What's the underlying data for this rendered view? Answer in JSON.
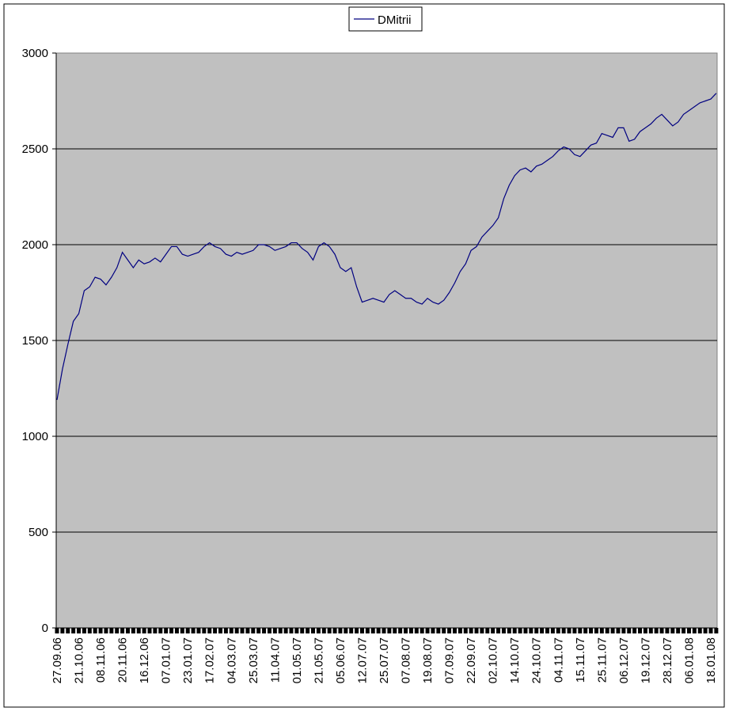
{
  "chart_data": {
    "type": "line",
    "categories": [
      "27.09.06",
      null,
      null,
      null,
      "21.10.06",
      null,
      null,
      null,
      "08.11.06",
      null,
      null,
      null,
      "20.11.06",
      null,
      null,
      null,
      "16.12.06",
      null,
      null,
      null,
      "07.01.07",
      null,
      null,
      null,
      "23.01.07",
      null,
      null,
      null,
      "17.02.07",
      null,
      null,
      null,
      "04.03.07",
      null,
      null,
      null,
      "25.03.07",
      null,
      null,
      null,
      "11.04.07",
      null,
      null,
      null,
      "01.05.07",
      null,
      null,
      null,
      "21.05.07",
      null,
      null,
      null,
      "05.06.07",
      null,
      null,
      null,
      "12.07.07",
      null,
      null,
      null,
      "25.07.07",
      null,
      null,
      null,
      "07.08.07",
      null,
      null,
      null,
      "19.08.07",
      null,
      null,
      null,
      "07.09.07",
      null,
      null,
      null,
      "22.09.07",
      null,
      null,
      null,
      "02.10.07",
      null,
      null,
      null,
      "14.10.07",
      null,
      null,
      null,
      "24.10.07",
      null,
      null,
      null,
      "04.11.07",
      null,
      null,
      null,
      "15.11.07",
      null,
      null,
      null,
      "25.11.07",
      null,
      null,
      null,
      "06.12.07",
      null,
      null,
      null,
      "19.12.07",
      null,
      null,
      null,
      "28.12.07",
      null,
      null,
      null,
      "06.01.08",
      null,
      null,
      null,
      "18.01.08",
      null
    ],
    "series": [
      {
        "name": "DMitrii",
        "color": "#000080",
        "values": [
          1190,
          1350,
          1480,
          1600,
          1640,
          1760,
          1780,
          1830,
          1820,
          1790,
          1830,
          1880,
          1960,
          1920,
          1880,
          1920,
          1900,
          1910,
          1930,
          1910,
          1950,
          1990,
          1990,
          1950,
          1940,
          1950,
          1960,
          1990,
          2010,
          1990,
          1980,
          1950,
          1940,
          1960,
          1950,
          1960,
          1970,
          2000,
          2000,
          1990,
          1970,
          1980,
          1990,
          2010,
          2010,
          1980,
          1960,
          1920,
          1990,
          2010,
          1990,
          1950,
          1880,
          1860,
          1880,
          1780,
          1700,
          1710,
          1720,
          1710,
          1700,
          1740,
          1760,
          1740,
          1720,
          1720,
          1700,
          1690,
          1720,
          1700,
          1690,
          1710,
          1750,
          1800,
          1860,
          1900,
          1970,
          1990,
          2040,
          2070,
          2100,
          2140,
          2240,
          2310,
          2360,
          2390,
          2400,
          2380,
          2410,
          2420,
          2440,
          2460,
          2490,
          2510,
          2500,
          2470,
          2460,
          2490,
          2520,
          2530,
          2580,
          2570,
          2560,
          2610,
          2610,
          2540,
          2550,
          2590,
          2610,
          2630,
          2660,
          2680,
          2650,
          2620,
          2640,
          2680,
          2700,
          2720,
          2740,
          2750,
          2760,
          2790
        ]
      }
    ],
    "ylim": [
      0,
      3000
    ],
    "yticks": [
      0,
      500,
      1000,
      1500,
      2000,
      2500,
      3000
    ],
    "grid": true,
    "legend": "top"
  }
}
